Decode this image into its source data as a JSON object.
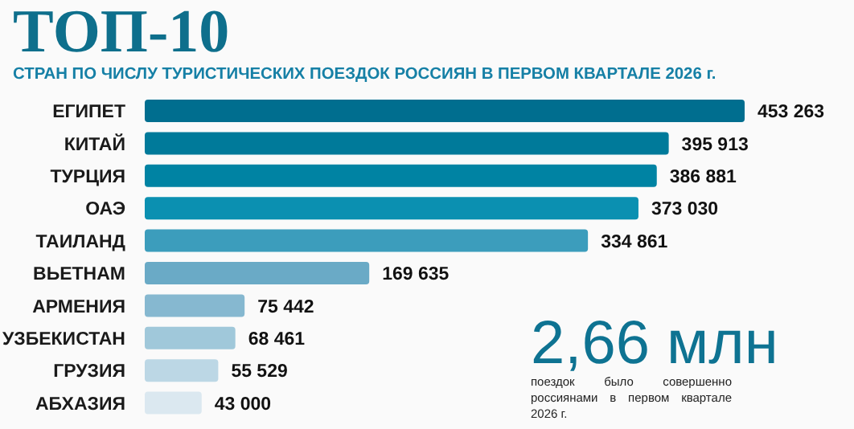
{
  "chart_data": {
    "type": "bar",
    "orientation": "horizontal",
    "title": "ТОП-10",
    "subtitle": "СТРАН ПО ЧИСЛУ ТУРИСТИЧЕСКИХ ПОЕЗДОК РОССИЯН В ПЕРВОМ КВАРТАЛЕ 2026 г.",
    "categories": [
      "ЕГИПЕТ",
      "КИТАЙ",
      "ТУРЦИЯ",
      "ОАЭ",
      "ТАИЛАНД",
      "ВЬЕТНАМ",
      "АРМЕНИЯ",
      "УЗБЕКИСТАН",
      "ГРУЗИЯ",
      "АБХАЗИЯ"
    ],
    "values": [
      453263,
      395913,
      386881,
      373030,
      334861,
      169635,
      75442,
      68461,
      55529,
      43000
    ],
    "value_labels": [
      "453 263",
      "395 913",
      "386 881",
      "373 030",
      "334 861",
      "169 635",
      "75 442",
      "68 461",
      "55 529",
      "43 000"
    ],
    "colors": [
      "#006e8f",
      "#007a9a",
      "#0083a3",
      "#0b90b1",
      "#3c9dbc",
      "#6aaac6",
      "#86b8d0",
      "#a0c8da",
      "#bcd7e5",
      "#dbe8f0"
    ],
    "annotations": [
      "2,66 млн",
      "поездок было совершенно россиянами в первом квартале 2026 г."
    ]
  }
}
